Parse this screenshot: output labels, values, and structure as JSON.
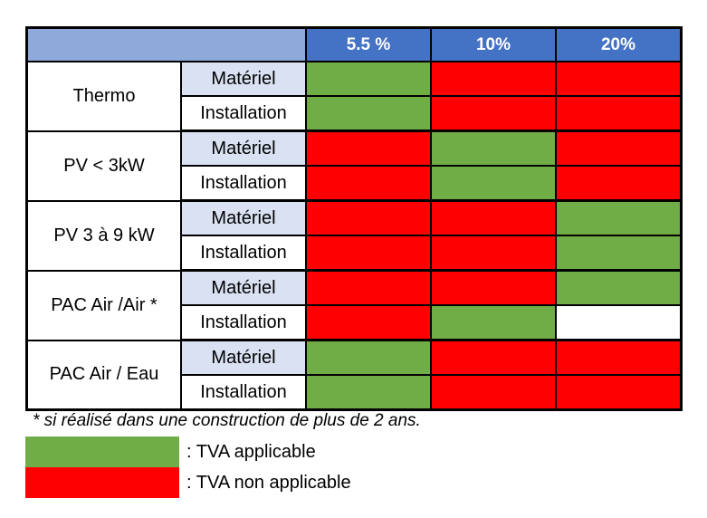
{
  "colors": {
    "header_blank": "#8eaadb",
    "header_rate": "#4472c4",
    "sub_materiel": "#d9e1f2",
    "applicable": "#70ad47",
    "non_applicable": "#ff0000"
  },
  "table": {
    "columns": [
      "5.5 %",
      "10%",
      "20%"
    ],
    "groups": [
      {
        "label": "Thermo",
        "rows": [
          {
            "label": "Matériel",
            "values": [
              "green",
              "red",
              "red"
            ]
          },
          {
            "label": "Installation",
            "values": [
              "green",
              "red",
              "red"
            ]
          }
        ]
      },
      {
        "label": "PV < 3kW",
        "rows": [
          {
            "label": "Matériel",
            "values": [
              "red",
              "green",
              "red"
            ]
          },
          {
            "label": "Installation",
            "values": [
              "red",
              "green",
              "red"
            ]
          }
        ]
      },
      {
        "label": "PV 3 à 9 kW",
        "rows": [
          {
            "label": "Matériel",
            "values": [
              "red",
              "red",
              "green"
            ]
          },
          {
            "label": "Installation",
            "values": [
              "red",
              "red",
              "green"
            ]
          }
        ]
      },
      {
        "label": "PAC Air /Air *",
        "rows": [
          {
            "label": "Matériel",
            "values": [
              "red",
              "red",
              "green"
            ]
          },
          {
            "label": "Installation",
            "values": [
              "red",
              "green",
              "white"
            ]
          }
        ]
      },
      {
        "label": "PAC Air / Eau",
        "rows": [
          {
            "label": "Matériel",
            "values": [
              "green",
              "red",
              "red"
            ]
          },
          {
            "label": "Installation",
            "values": [
              "green",
              "red",
              "red"
            ]
          }
        ]
      }
    ]
  },
  "footnote": "* si réalisé dans une construction de plus de 2 ans.",
  "legend": [
    {
      "color": "green",
      "label": ": TVA applicable"
    },
    {
      "color": "red",
      "label": ": TVA non applicable"
    }
  ]
}
